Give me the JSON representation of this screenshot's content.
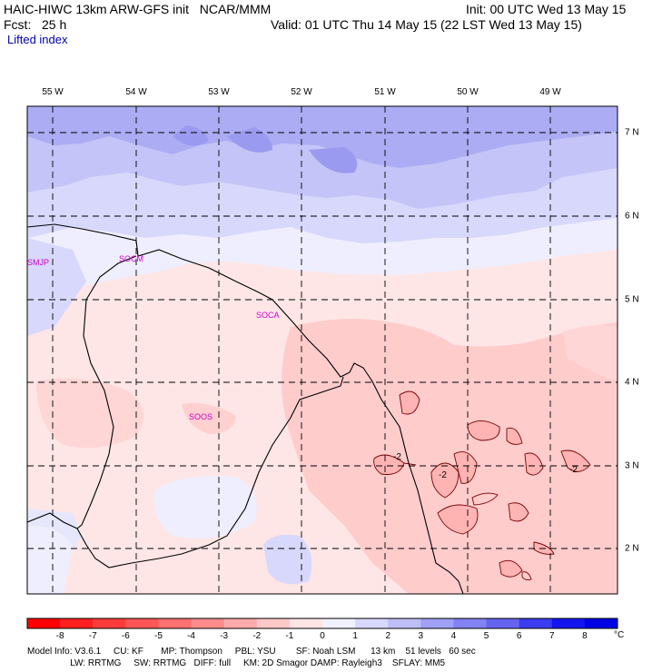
{
  "header": {
    "title_left": "HAIC-HIWC 13km ARW-GFS init   NCAR/MMM",
    "init": "Init: 00 UTC Wed 13 May 15",
    "fcst": "Fcst:   25 h",
    "valid": "Valid: 01 UTC Thu 14 May 15 (22 LST Wed 13 May 15)",
    "field": "Lifted index"
  },
  "axes": {
    "longitudes": [
      "55 W",
      "54 W",
      "53 W",
      "52 W",
      "51 W",
      "50 W",
      "49 W"
    ],
    "latitudes": [
      "7 N",
      "6 N",
      "5 N",
      "4 N",
      "3 N",
      "2 N"
    ]
  },
  "stations": [
    "SMJP",
    "SOCM",
    "SOCA",
    "SOOS"
  ],
  "contour_labels": [
    "-2",
    "-2",
    "-2"
  ],
  "colorbar": {
    "ticks": [
      "-8",
      "-7",
      "-6",
      "-5",
      "-4",
      "-3",
      "-2",
      "-1",
      "0",
      "1",
      "2",
      "3",
      "4",
      "5",
      "6",
      "7",
      "8"
    ],
    "unit": "°C",
    "colors": [
      "#ff0000",
      "#ff2020",
      "#ff3c3c",
      "#ff5656",
      "#ff7070",
      "#ff8c8c",
      "#ffaaaa",
      "#ffc8c8",
      "#ffe4e4",
      "#f0f0ff",
      "#d8d8ff",
      "#bebef8",
      "#a0a0f8",
      "#8282f4",
      "#6464f0",
      "#3c3cf0",
      "#1414f0",
      "#0000e6"
    ]
  },
  "footer": {
    "line1": "Model Info: V3.6.1     CU: KF       MP: Thompson     PBL: YSU        SF: Noah LSM      13 km    51 levels   60 sec",
    "line2": "                 LW: RRTMG     SW: RRTMG   DIFF: full     KM: 2D Smagor DAMP: Rayleigh3    SFLAY: MM5"
  }
}
